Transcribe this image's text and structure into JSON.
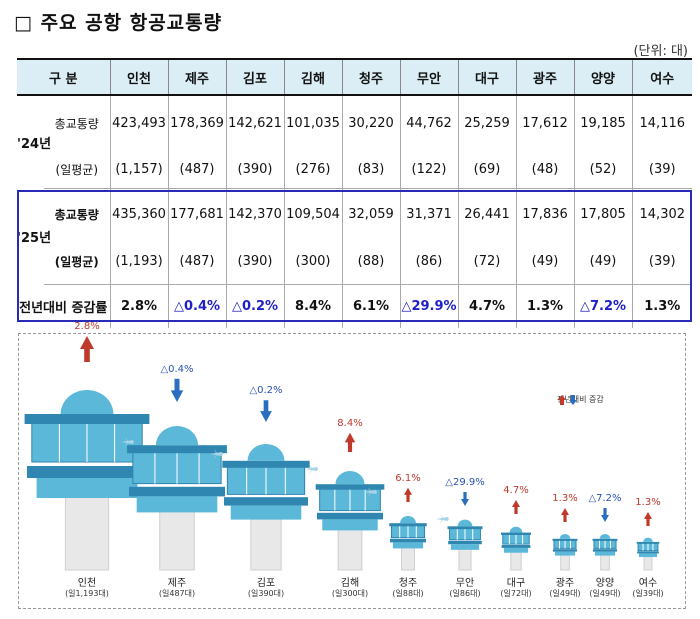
{
  "title": "□ 주요 공항 항공교통량",
  "unit": "(단위: 대)",
  "table": {
    "header_label": "구 분",
    "airports": [
      "인천",
      "제주",
      "김포",
      "김해",
      "청주",
      "무안",
      "대구",
      "광주",
      "양양",
      "여수"
    ],
    "year24_label": "'24년",
    "year25_label": "'25년",
    "total_label": "총교통량",
    "daily_label": "(일평균)",
    "change_label": "전년대비 증감률",
    "y24_total": [
      "423,493",
      "178,369",
      "142,621",
      "101,035",
      "30,220",
      "44,762",
      "25,259",
      "17,612",
      "19,185",
      "14,116"
    ],
    "y24_daily": [
      "(1,157)",
      "(487)",
      "(390)",
      "(276)",
      "(83)",
      "(122)",
      "(69)",
      "(48)",
      "(52)",
      "(39)"
    ],
    "y25_total": [
      "435,360",
      "177,681",
      "142,370",
      "109,504",
      "32,059",
      "31,371",
      "26,441",
      "17,836",
      "17,805",
      "14,302"
    ],
    "y25_daily": [
      "(1,193)",
      "(487)",
      "(390)",
      "(300)",
      "(88)",
      "(86)",
      "(72)",
      "(49)",
      "(49)",
      "(39)"
    ],
    "change": [
      "2.8%",
      "△0.4%",
      "△0.2%",
      "8.4%",
      "6.1%",
      "△29.9%",
      "4.7%",
      "1.3%",
      "△7.2%",
      "1.3%"
    ]
  },
  "infographic": {
    "legend_label": "전년대비 증감",
    "colors": {
      "up": "#c0392b",
      "down": "#2a6fbf",
      "tower": "#5bb8d8",
      "tower_dark": "#2f86b0",
      "pillar": "#e8e8e8"
    },
    "items": [
      {
        "name": "인천",
        "daily": "(일1,193대)",
        "pct": "2.8%",
        "dir": "up",
        "daily_value": 1193
      },
      {
        "name": "제주",
        "daily": "(일487대)",
        "pct": "△0.4%",
        "dir": "down",
        "daily_value": 487
      },
      {
        "name": "김포",
        "daily": "(일390대)",
        "pct": "△0.2%",
        "dir": "down",
        "daily_value": 390
      },
      {
        "name": "김해",
        "daily": "(일300대)",
        "pct": "8.4%",
        "dir": "up",
        "daily_value": 300
      },
      {
        "name": "청주",
        "daily": "(일88대)",
        "pct": "6.1%",
        "dir": "up",
        "daily_value": 88
      },
      {
        "name": "무안",
        "daily": "(일86대)",
        "pct": "△29.9%",
        "dir": "down",
        "daily_value": 86
      },
      {
        "name": "대구",
        "daily": "(일72대)",
        "pct": "4.7%",
        "dir": "up",
        "daily_value": 72
      },
      {
        "name": "광주",
        "daily": "(일49대)",
        "pct": "1.3%",
        "dir": "up",
        "daily_value": 49
      },
      {
        "name": "양양",
        "daily": "(일49대)",
        "pct": "△7.2%",
        "dir": "down",
        "daily_value": 49
      },
      {
        "name": "여수",
        "daily": "(일39대)",
        "pct": "1.3%",
        "dir": "up",
        "daily_value": 39
      }
    ]
  }
}
